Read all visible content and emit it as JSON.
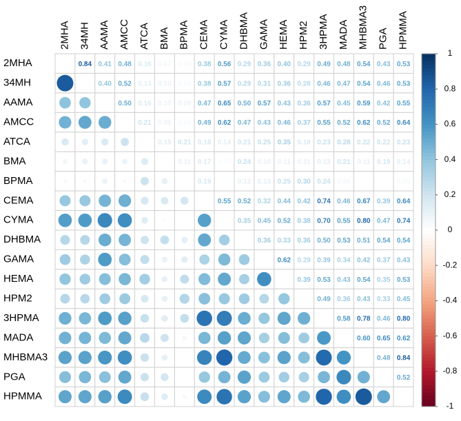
{
  "chart_data": {
    "type": "corrplot",
    "variables": [
      "2MHA",
      "34MH",
      "AAMA",
      "AMCC",
      "ATCA",
      "BMA",
      "BPMA",
      "CEMA",
      "CYMA",
      "DHBMA",
      "GAMA",
      "HEMA",
      "HPM2",
      "3HPMA",
      "MADA",
      "MHBMA3",
      "PGA",
      "HPMMA"
    ],
    "values": [
      [
        0.84,
        0.41,
        0.48,
        0.16,
        0.07,
        0.04,
        0.38,
        0.56,
        0.29,
        0.36,
        0.4,
        0.29,
        0.49,
        0.48,
        0.54,
        0.43,
        0.53
      ],
      [
        0.4,
        0.52,
        0.13,
        0.1,
        0.05,
        0.38,
        0.57,
        0.29,
        0.31,
        0.36,
        0.28,
        0.46,
        0.47,
        0.54,
        0.46,
        0.53
      ],
      [
        0.5,
        0.16,
        0.1,
        0.09,
        0.47,
        0.65,
        0.5,
        0.57,
        0.43,
        0.36,
        0.57,
        0.45,
        0.59,
        0.42,
        0.55
      ],
      [
        0.21,
        0.09,
        0.04,
        0.49,
        0.62,
        0.47,
        0.43,
        0.46,
        0.37,
        0.55,
        0.52,
        0.62,
        0.52,
        0.64
      ],
      [
        0.15,
        0.21,
        0.18,
        0.14,
        0.21,
        0.25,
        0.35,
        0.18,
        0.23,
        0.28,
        0.22,
        0.22,
        0.23
      ],
      [
        0.11,
        0.17,
        0.03,
        0.24,
        0.1,
        0.11,
        0.11,
        0.13,
        0.21,
        0.11,
        0.19,
        0.14
      ],
      [
        0.19,
        0.01,
        0.12,
        0.13,
        0.25,
        0.3,
        0.24,
        0.06,
        0.0,
        0.01,
        0.05
      ],
      [
        0.55,
        0.52,
        0.32,
        0.44,
        0.42,
        0.74,
        0.46,
        0.67,
        0.39,
        0.64
      ],
      [
        0.35,
        0.45,
        0.52,
        0.38,
        0.7,
        0.55,
        0.8,
        0.47,
        0.74
      ],
      [
        0.36,
        0.33,
        0.36,
        0.5,
        0.53,
        0.51,
        0.54,
        0.54
      ],
      [
        0.62,
        0.29,
        0.39,
        0.34,
        0.42,
        0.37,
        0.43
      ],
      [
        0.39,
        0.53,
        0.43,
        0.54,
        0.35,
        0.53
      ],
      [
        0.49,
        0.36,
        0.43,
        0.33,
        0.45
      ],
      [
        0.58,
        0.78,
        0.46,
        0.8
      ],
      [
        0.6,
        0.65,
        0.62
      ],
      [
        0.48,
        0.84
      ],
      [
        0.52
      ]
    ],
    "value_labels": [
      [
        "0.84",
        "0.41",
        "0.48",
        "0.16",
        "0.07",
        "0.04",
        "0.38",
        "0.56",
        "0.29",
        "0.36",
        "0.40",
        "0.29",
        "0.49",
        "0.48",
        "0.54",
        "0.43",
        "0.53"
      ],
      [
        "0.40",
        "0.52",
        "0.13",
        "0.10",
        "0.05",
        "0.38",
        "0.57",
        "0.29",
        "0.31",
        "0.36",
        "0.28",
        "0.46",
        "0.47",
        "0.54",
        "0.46",
        "0.53"
      ],
      [
        "0.50",
        "0.16",
        "0.10",
        "0.09",
        "0.47",
        "0.65",
        "0.50",
        "0.57",
        "0.43",
        "0.36",
        "0.57",
        "0.45",
        "0.59",
        "0.42",
        "0.55"
      ],
      [
        "0.21",
        "0.09",
        "0.04",
        "0.49",
        "0.62",
        "0.47",
        "0.43",
        "0.46",
        "0.37",
        "0.55",
        "0.52",
        "0.62",
        "0.52",
        "0.64"
      ],
      [
        "0.15",
        "0.21",
        "0.18",
        "0.14",
        "0.21",
        "0.25",
        "0.35",
        "0.18",
        "0.23",
        "0.28",
        "0.22",
        "0.22",
        "0.23"
      ],
      [
        "0.11",
        "0.17",
        "0.03",
        "0.24",
        "0.10",
        "0.11",
        "0.11",
        "0.13",
        "0.21",
        "0.11",
        "0.19",
        "0.14"
      ],
      [
        "0.19",
        "0.01",
        "0.12",
        "0.13",
        "0.25",
        "0.30",
        "0.24",
        "0.06",
        "0.00",
        "0.01",
        "0.05"
      ],
      [
        "0.55",
        "0.52",
        "0.32",
        "0.44",
        "0.42",
        "0.74",
        "0.46",
        "0.67",
        "0.39",
        "0.64"
      ],
      [
        "0.35",
        "0.45",
        "0.52",
        "0.38",
        "0.70",
        "0.55",
        "0.80",
        "0.47",
        "0.74"
      ],
      [
        "0.36",
        "0.33",
        "0.36",
        "0.50",
        "0.53",
        "0.51",
        "0.54",
        "0.54"
      ],
      [
        "0.62",
        "0.29",
        "0.39",
        "0.34",
        "0.42",
        "0.37",
        "0.43"
      ],
      [
        "0.39",
        "0.53",
        "0.43",
        "0.54",
        "0.35",
        "0.53"
      ],
      [
        "0.49",
        "0.36",
        "0.43",
        "0.33",
        "0.45"
      ],
      [
        "0.58",
        "0.78",
        "0.46",
        "0.80"
      ],
      [
        "0.60",
        "0.65",
        "0.62"
      ],
      [
        "0.48",
        "0.84"
      ],
      [
        "0.52"
      ]
    ],
    "clim": [
      -1,
      1
    ],
    "colorbar_ticks": [
      1,
      0.8,
      0.6,
      0.4,
      0.2,
      0,
      -0.2,
      -0.4,
      -0.6,
      -0.8,
      -1
    ],
    "colorscale": [
      "#67001F",
      "#B2182B",
      "#D6604D",
      "#F4A582",
      "#FDDBC7",
      "#FFFFFF",
      "#D1E5F0",
      "#92C5DE",
      "#4393C3",
      "#2166AC",
      "#053061"
    ]
  }
}
